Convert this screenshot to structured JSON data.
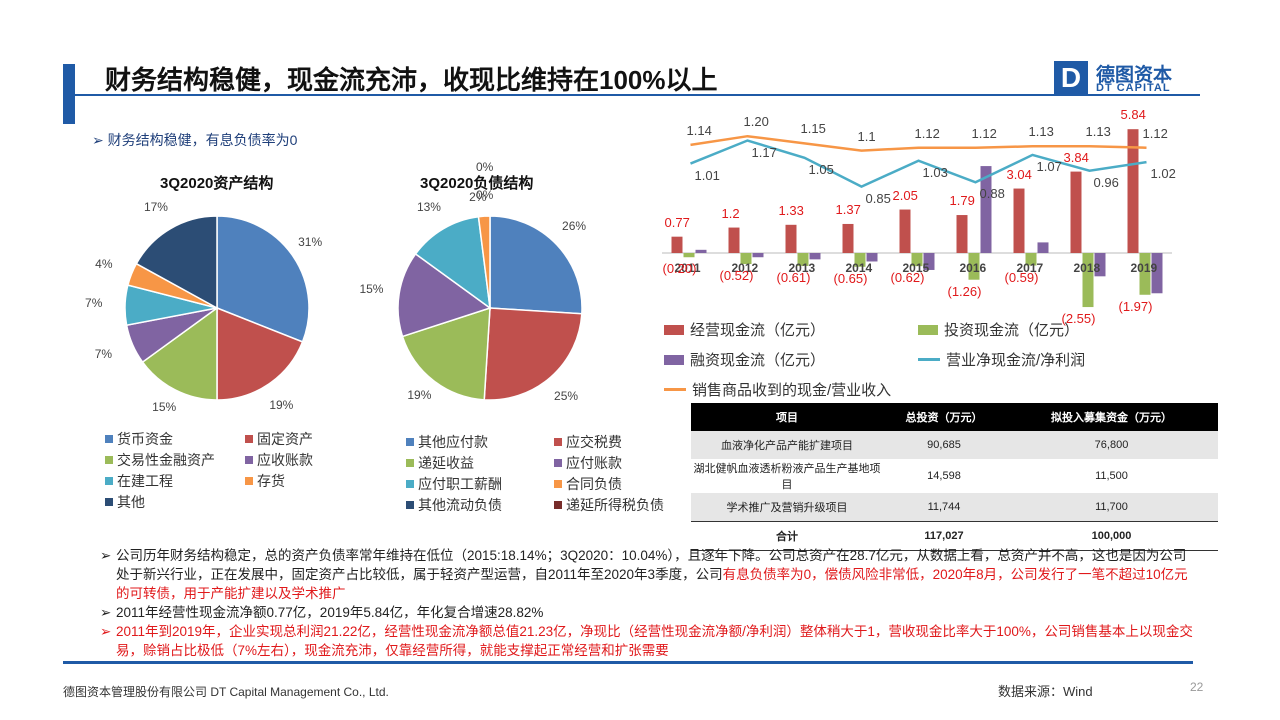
{
  "header": {
    "title": "财务结构稳健，现金流充沛，收现比维持在100%以上",
    "logo_mark": "D",
    "logo_cn": "德图资本",
    "logo_en": "DT CAPITAL"
  },
  "subtitle": "财务结构稳健，有息负债率为0",
  "colors": {
    "accent": "#1f5aa6",
    "red_text": "#e0191b",
    "blue": "#4f81bd",
    "red": "#c0504d",
    "green": "#9bbb59",
    "purple": "#8064a2",
    "teal": "#4bacc6",
    "orange": "#f79646",
    "navy": "#2c4d75",
    "darkred": "#772c2a"
  },
  "chart_data": [
    {
      "type": "pie",
      "title": "3Q2020资产结构",
      "categories": [
        "货币资金",
        "固定资产",
        "交易性金融资产",
        "应收账款",
        "在建工程",
        "存货",
        "其他"
      ],
      "values": [
        31,
        19,
        15,
        7,
        7,
        4,
        17
      ],
      "labels": [
        "31%",
        "19%",
        "15%",
        "7%",
        "7%",
        "4%",
        "17%"
      ]
    },
    {
      "type": "pie",
      "title": "3Q2020负债结构",
      "categories": [
        "其他应付款",
        "应交税费",
        "递延收益",
        "应付账款",
        "应付职工薪酬",
        "合同负债",
        "其他流动负债",
        "递延所得税负债"
      ],
      "values": [
        26,
        25,
        19,
        15,
        13,
        2,
        0,
        0
      ],
      "labels": [
        "26%",
        "25%",
        "19%",
        "15%",
        "13%",
        "2%",
        "0%",
        "0%"
      ]
    },
    {
      "type": "bar",
      "categories": [
        "2011",
        "2012",
        "2013",
        "2014",
        "2015",
        "2016",
        "2017",
        "2018",
        "2019"
      ],
      "series": [
        {
          "name": "经营现金流（亿元）",
          "kind": "bar",
          "values": [
            0.77,
            1.2,
            1.33,
            1.37,
            2.05,
            1.79,
            3.04,
            3.84,
            5.84
          ],
          "labels": [
            "0.77",
            "1.2",
            "1.33",
            "1.37",
            "2.05",
            "1.79",
            "3.04",
            "3.84",
            "5.84"
          ]
        },
        {
          "name": "投资现金流（亿元）",
          "kind": "bar",
          "values": [
            -0.2,
            -0.52,
            -0.61,
            -0.65,
            -0.62,
            -1.26,
            -0.59,
            -2.55,
            -1.97
          ],
          "labels": [
            "(0.20)",
            "(0.52)",
            "(0.61)",
            "(0.65)",
            "(0.62)",
            "(1.26)",
            "(0.59)",
            "(2.55)",
            "(1.97)"
          ]
        },
        {
          "name": "融资现金流（亿元）",
          "kind": "bar",
          "values": [
            0.15,
            -0.2,
            -0.3,
            -0.4,
            -0.8,
            4.1,
            0.5,
            -1.1,
            -1.9
          ]
        },
        {
          "name": "营业净现金流/净利润",
          "kind": "line",
          "values": [
            1.01,
            1.17,
            1.05,
            0.85,
            1.03,
            0.88,
            1.07,
            0.96,
            1.02
          ],
          "labels": [
            "1.01",
            "1.17",
            "1.05",
            "0.85",
            "1.03",
            "0.88",
            "1.07",
            "0.96",
            "1.02"
          ]
        },
        {
          "name": "销售商品收到的现金/营业收入",
          "kind": "line",
          "values": [
            1.14,
            1.2,
            1.15,
            1.1,
            1.12,
            1.12,
            1.13,
            1.13,
            1.12
          ],
          "labels": [
            "1.14",
            "1.20",
            "1.15",
            "1.1",
            "1.12",
            "1.12",
            "1.13",
            "1.13",
            "1.12"
          ]
        }
      ]
    }
  ],
  "table": {
    "headers": [
      "项目",
      "总投资（万元）",
      "拟投入募集资金（万元）"
    ],
    "rows": [
      [
        "血液净化产品产能扩建项目",
        "90,685",
        "76,800"
      ],
      [
        "湖北健帆血液透析粉液产品生产基地项目",
        "14,598",
        "11,500"
      ],
      [
        "学术推广及营销升级项目",
        "11,744",
        "11,700"
      ],
      [
        "合计",
        "117,027",
        "100,000"
      ]
    ]
  },
  "bullets": {
    "arrow": "➢",
    "b1_normal": "公司历年财务结构稳定，总的资产负债率常年维持在低位（2015:18.14%；3Q2020：10.04%），且逐年下降。公司总资产在28.7亿元，从数据上看，总资产并不高，这也是因为公司处于新兴行业，正在发展中，固定资产占比较低，属于轻资产型运营，自2011年至2020年3季度，公司",
    "b1_red": "有息负债率为0，偿债风险非常低，2020年8月，公司发行了一笔不超过10亿元的可转债，用于产能扩建以及学术推广",
    "b2": "2011年经营性现金流净额0.77亿，2019年5.84亿，年化复合增速28.82%",
    "b3": "2011年到2019年，企业实现总利润21.22亿，经营性现金流净额总值21.23亿，净现比（经营性现金流净额/净利润）整体稍大于1，营收现金比率大于100%，公司销售基本上以现金交易，赊销占比极低（7%左右），现金流充沛，仅靠经营所得，就能支撑起正常经营和扩张需要"
  },
  "footer": {
    "company": "德图资本管理股份有限公司 DT Capital Management Co., Ltd.",
    "source": "数据来源：Wind",
    "page": "22"
  }
}
